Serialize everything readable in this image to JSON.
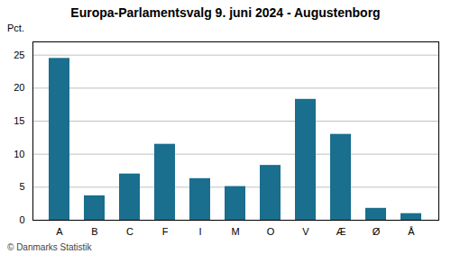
{
  "chart_data": {
    "type": "bar",
    "title": "Europa-Parlamentsvalg 9. juni 2024 - Augustenborg",
    "ylabel": "Pct.",
    "footer": "© Danmarks Statistik",
    "categories": [
      "A",
      "B",
      "C",
      "F",
      "I",
      "M",
      "O",
      "V",
      "Æ",
      "Ø",
      "Å"
    ],
    "values": [
      24.5,
      3.7,
      7.0,
      11.5,
      6.3,
      5.1,
      8.3,
      18.3,
      13.0,
      1.8,
      1.0
    ],
    "color": "#1a6e8e",
    "ylim": [
      0,
      27
    ],
    "yticks": [
      0,
      5,
      10,
      15,
      20,
      25
    ],
    "grid": true
  }
}
